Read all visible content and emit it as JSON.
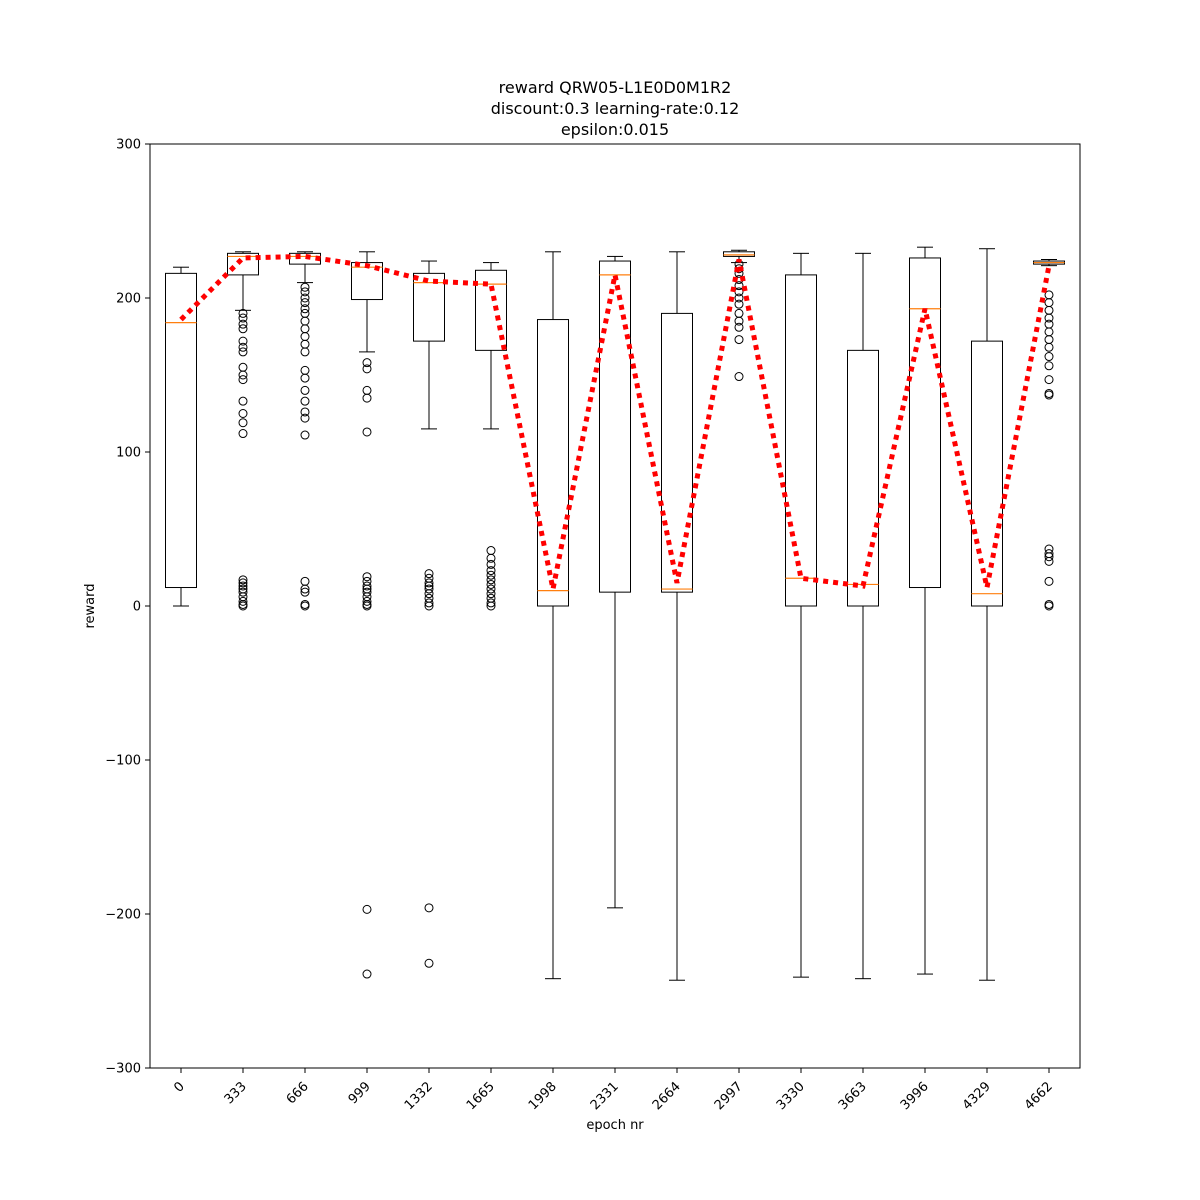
{
  "chart_data": {
    "type": "box",
    "title_lines": [
      "reward QRW05-L1E0D0M1R2",
      "discount:0.3 learning-rate:0.12",
      "epsilon:0.015"
    ],
    "xlabel": "epoch nr",
    "ylabel": "reward",
    "ylim": [
      -300,
      300
    ],
    "yticks": [
      -300,
      -200,
      -100,
      0,
      100,
      200,
      300
    ],
    "categories": [
      "0",
      "333",
      "666",
      "999",
      "1332",
      "1665",
      "1998",
      "2331",
      "2664",
      "2997",
      "3330",
      "3663",
      "3996",
      "4329",
      "4662"
    ],
    "boxes": [
      {
        "q1": 12,
        "median": 184,
        "q3": 216,
        "whisker_low": 0,
        "whisker_high": 220,
        "outliers": []
      },
      {
        "q1": 215,
        "median": 227,
        "q3": 229,
        "whisker_low": 192,
        "whisker_high": 230,
        "outliers": [
          190,
          187,
          183,
          180,
          172,
          168,
          165,
          155,
          150,
          147,
          133,
          125,
          119,
          112,
          17,
          15,
          13,
          11,
          9,
          6,
          3,
          1,
          0
        ]
      },
      {
        "q1": 222,
        "median": 227,
        "q3": 229,
        "whisker_low": 210,
        "whisker_high": 230,
        "outliers": [
          207,
          204,
          200,
          197,
          193,
          190,
          185,
          180,
          175,
          170,
          165,
          153,
          148,
          140,
          133,
          126,
          122,
          111,
          16,
          11,
          9,
          1,
          0
        ]
      },
      {
        "q1": 199,
        "median": 220,
        "q3": 223,
        "whisker_low": 165,
        "whisker_high": 230,
        "outliers": [
          158,
          154,
          140,
          135,
          113,
          19,
          16,
          13,
          11,
          9,
          6,
          3,
          1,
          0,
          -197,
          -239
        ]
      },
      {
        "q1": 172,
        "median": 210,
        "q3": 216,
        "whisker_low": 115,
        "whisker_high": 224,
        "outliers": [
          21,
          18,
          15,
          13,
          11,
          8,
          5,
          2,
          0,
          -196,
          -232
        ]
      },
      {
        "q1": 166,
        "median": 209,
        "q3": 218,
        "whisker_low": 115,
        "whisker_high": 223,
        "outliers": [
          36,
          31,
          27,
          23,
          20,
          17,
          14,
          11,
          8,
          5,
          2,
          0
        ]
      },
      {
        "q1": 0,
        "median": 10,
        "q3": 186,
        "whisker_low": -242,
        "whisker_high": 230,
        "outliers": []
      },
      {
        "q1": 9,
        "median": 215,
        "q3": 224,
        "whisker_low": -196,
        "whisker_high": 227,
        "outliers": []
      },
      {
        "q1": 9,
        "median": 11,
        "q3": 190,
        "whisker_low": -243,
        "whisker_high": 230,
        "outliers": []
      },
      {
        "q1": 227,
        "median": 228,
        "q3": 230,
        "whisker_low": 223,
        "whisker_high": 231,
        "outliers": [
          222,
          219,
          216,
          212,
          208,
          204,
          200,
          196,
          190,
          185,
          181,
          173,
          149
        ]
      },
      {
        "q1": 0,
        "median": 18,
        "q3": 215,
        "whisker_low": -241,
        "whisker_high": 229,
        "outliers": []
      },
      {
        "q1": 0,
        "median": 14,
        "q3": 166,
        "whisker_low": -242,
        "whisker_high": 229,
        "outliers": []
      },
      {
        "q1": 12,
        "median": 193,
        "q3": 226,
        "whisker_low": -239,
        "whisker_high": 233,
        "outliers": []
      },
      {
        "q1": 0,
        "median": 8,
        "q3": 172,
        "whisker_low": -243,
        "whisker_high": 232,
        "outliers": []
      },
      {
        "q1": 222,
        "median": 223,
        "q3": 224,
        "whisker_low": 221,
        "whisker_high": 225,
        "outliers": [
          202,
          197,
          192,
          187,
          183,
          178,
          173,
          168,
          162,
          156,
          147,
          138,
          137,
          37,
          34,
          32,
          29,
          16,
          1,
          0
        ]
      }
    ],
    "mean_line": {
      "style": "dotted",
      "values": [
        186,
        226,
        227,
        221,
        211,
        209,
        11,
        215,
        15,
        225,
        18,
        13,
        193,
        12,
        221
      ]
    },
    "colors": {
      "box": "#000000",
      "median": "#ff7f0e",
      "mean_line": "#ff0000"
    },
    "grid": false
  }
}
